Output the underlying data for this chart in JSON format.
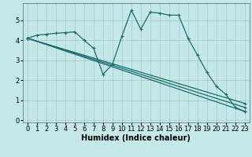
{
  "background_color": "#c4e8e8",
  "grid_color": "#a0c8c8",
  "line_color": "#1a6b6b",
  "marker": "+",
  "markersize": 3.5,
  "linewidth": 0.9,
  "xlabel": "Humidex (Indice chaleur)",
  "xlabel_fontsize": 7,
  "tick_fontsize": 6,
  "xlim": [
    -0.5,
    23.5
  ],
  "ylim": [
    -0.1,
    5.85
  ],
  "yticks": [
    0,
    1,
    2,
    3,
    4,
    5
  ],
  "xticks": [
    0,
    1,
    2,
    3,
    4,
    5,
    6,
    7,
    8,
    9,
    10,
    11,
    12,
    13,
    14,
    15,
    16,
    17,
    18,
    19,
    20,
    21,
    22,
    23
  ],
  "series": [
    {
      "x": [
        0,
        1,
        2,
        3,
        4,
        5,
        6,
        7,
        8,
        9,
        10,
        11,
        12,
        13,
        14,
        15,
        16,
        17,
        18,
        19,
        20,
        21,
        22,
        23
      ],
      "y": [
        4.1,
        4.25,
        4.3,
        4.35,
        4.38,
        4.42,
        4.0,
        3.6,
        2.3,
        2.8,
        4.2,
        5.5,
        4.55,
        5.4,
        5.35,
        5.25,
        5.25,
        4.1,
        3.25,
        2.4,
        1.7,
        1.3,
        0.65,
        0.45
      ]
    },
    {
      "x": [
        0,
        23
      ],
      "y": [
        4.1,
        0.85
      ]
    },
    {
      "x": [
        0,
        23
      ],
      "y": [
        4.1,
        0.65
      ]
    },
    {
      "x": [
        0,
        23
      ],
      "y": [
        4.1,
        0.45
      ]
    }
  ]
}
